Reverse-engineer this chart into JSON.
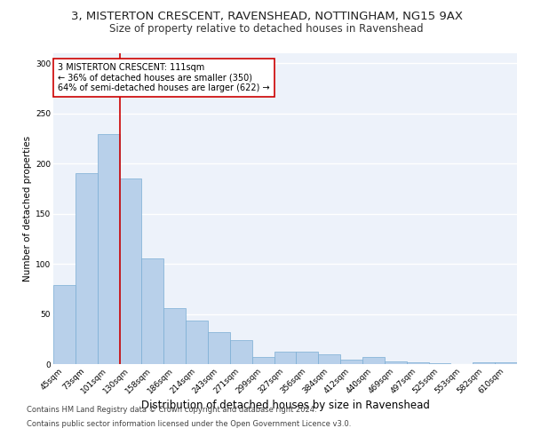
{
  "title": "3, MISTERTON CRESCENT, RAVENSHEAD, NOTTINGHAM, NG15 9AX",
  "subtitle": "Size of property relative to detached houses in Ravenshead",
  "xlabel": "Distribution of detached houses by size in Ravenshead",
  "ylabel": "Number of detached properties",
  "categories": [
    "45sqm",
    "73sqm",
    "101sqm",
    "130sqm",
    "158sqm",
    "186sqm",
    "214sqm",
    "243sqm",
    "271sqm",
    "299sqm",
    "327sqm",
    "356sqm",
    "384sqm",
    "412sqm",
    "440sqm",
    "469sqm",
    "497sqm",
    "525sqm",
    "553sqm",
    "582sqm",
    "610sqm"
  ],
  "values": [
    79,
    190,
    229,
    185,
    105,
    56,
    43,
    32,
    24,
    7,
    12,
    12,
    10,
    4,
    7,
    3,
    2,
    1,
    0,
    2,
    2
  ],
  "bar_color": "#b8d0ea",
  "bar_edge_color": "#7aadd4",
  "vline_color": "#cc0000",
  "annotation_text": "3 MISTERTON CRESCENT: 111sqm\n← 36% of detached houses are smaller (350)\n64% of semi-detached houses are larger (622) →",
  "annotation_box_color": "#ffffff",
  "annotation_box_edge_color": "#cc0000",
  "ylim": [
    0,
    310
  ],
  "yticks": [
    0,
    50,
    100,
    150,
    200,
    250,
    300
  ],
  "footnote1": "Contains HM Land Registry data © Crown copyright and database right 2024.",
  "footnote2": "Contains public sector information licensed under the Open Government Licence v3.0.",
  "background_color": "#edf2fa",
  "grid_color": "#ffffff",
  "title_fontsize": 9.5,
  "subtitle_fontsize": 8.5,
  "xlabel_fontsize": 8.5,
  "ylabel_fontsize": 7.5,
  "tick_fontsize": 6.5,
  "annot_fontsize": 7,
  "footnote_fontsize": 6
}
